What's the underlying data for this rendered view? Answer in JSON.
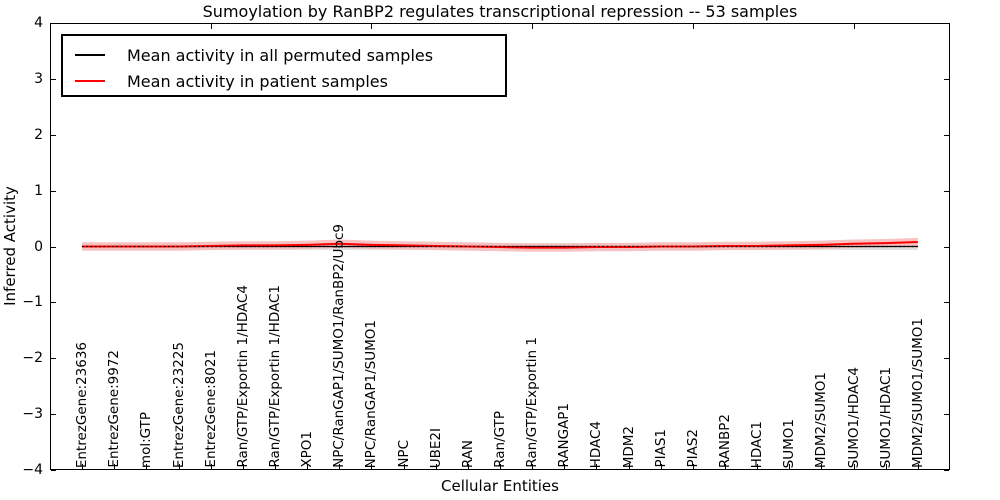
{
  "chart_data": {
    "type": "line",
    "title": "Sumoylation by RanBP2 regulates transcriptional repression -- 53 samples",
    "xlabel": "Cellular Entities",
    "ylabel": "Inferred Activity",
    "ylim": [
      -4,
      4
    ],
    "xlim": [
      0,
      28
    ],
    "yticks": [
      4,
      3,
      2,
      1,
      0,
      -1,
      -2,
      -3,
      -4
    ],
    "top_axis_tick_x": [
      5,
      10,
      15,
      20,
      25
    ],
    "grid": false,
    "legend_position": "upper left",
    "categories": [
      "EntrezGene:23636",
      "EntrezGene:9972",
      "mol:GTP",
      "EntrezGene:23225",
      "EntrezGene:8021",
      "Ran/GTP/Exportin 1/HDAC4",
      "Ran/GTP/Exportin 1/HDAC1",
      "XPO1",
      "NPC/RanGAP1/SUMO1/RanBP2/Ubc9",
      "NPC/RanGAP1/SUMO1",
      "NPC",
      "UBE2I",
      "RAN",
      "Ran/GTP",
      "Ran/GTP/Exportin 1",
      "RANGAP1",
      "HDAC4",
      "MDM2",
      "PIAS1",
      "PIAS2",
      "RANBP2",
      "HDAC1",
      "SUMO1",
      "MDM2/SUMO1",
      "SUMO1/HDAC4",
      "SUMO1/HDAC1",
      "MDM2/SUMO1/SUMO1"
    ],
    "series": [
      {
        "name": "Mean activity in all permuted samples",
        "color": "#000000",
        "style": "solid",
        "values": [
          0,
          0,
          0,
          0,
          0,
          0,
          0,
          0,
          0,
          0,
          0,
          0,
          0,
          0,
          0,
          0,
          0,
          0,
          0,
          0,
          0,
          0,
          0,
          0,
          0,
          0,
          0
        ]
      },
      {
        "name": "Mean activity in patient samples",
        "color": "#ff0000",
        "style": "solid",
        "values": [
          0.0,
          0.0,
          0.0,
          0.0,
          0.01,
          0.02,
          0.02,
          0.03,
          0.05,
          0.03,
          0.02,
          0.01,
          0.0,
          -0.01,
          -0.02,
          -0.02,
          -0.01,
          -0.01,
          0.0,
          0.0,
          0.01,
          0.01,
          0.02,
          0.03,
          0.05,
          0.06,
          0.08
        ]
      }
    ],
    "zero_line": {
      "y": 0,
      "style": "dotted",
      "color": "#000000"
    },
    "bands": [
      {
        "follows": "Mean activity in all permuted samples",
        "halfwidth": 0.06,
        "color": "#dcdcdc"
      },
      {
        "follows": "Mean activity in patient samples",
        "halfwidth": 0.075,
        "color": "#f6bcbc"
      }
    ]
  },
  "legend": {
    "items": [
      {
        "label": "Mean activity in all permuted samples",
        "color": "#000000"
      },
      {
        "label": "Mean activity in patient samples",
        "color": "#ff0000"
      }
    ]
  }
}
